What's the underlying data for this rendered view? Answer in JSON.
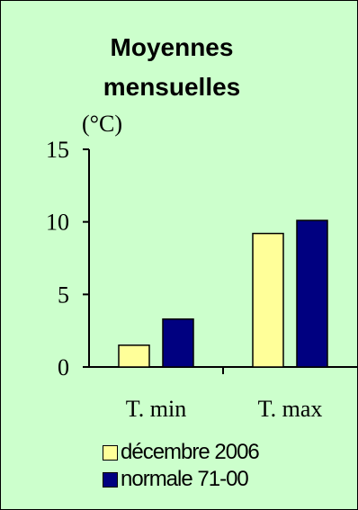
{
  "chart_data": {
    "type": "bar",
    "title_lines": [
      "Moyennes",
      "mensuelles"
    ],
    "ylabel": "(°C)",
    "ylim": [
      0,
      15
    ],
    "yticks": [
      0,
      5,
      10,
      15
    ],
    "categories": [
      "T. min",
      "T. max"
    ],
    "series": [
      {
        "name": "décembre 2006",
        "color": "#ffff99",
        "values": [
          1.5,
          9.2
        ]
      },
      {
        "name": "normale 71-00",
        "color": "#000080",
        "values": [
          3.3,
          10.1
        ]
      }
    ],
    "grid": false,
    "legend_position": "bottom",
    "background": "#ccffcc"
  }
}
